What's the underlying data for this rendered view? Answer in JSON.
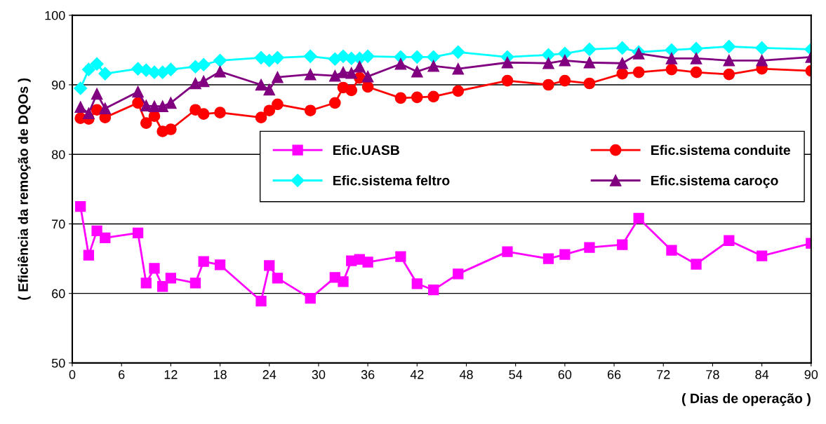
{
  "chart_data": {
    "type": "line",
    "xlabel": "( Dias de operação )",
    "ylabel": "( Eficiência da remoção de DQOs )",
    "x": [
      1,
      2,
      3,
      4,
      8,
      9,
      10,
      11,
      12,
      15,
      16,
      18,
      23,
      24,
      25,
      29,
      32,
      33,
      34,
      35,
      36,
      40,
      42,
      44,
      47,
      53,
      58,
      60,
      63,
      67,
      69,
      73,
      76,
      80,
      84,
      90
    ],
    "xlim": [
      0,
      90
    ],
    "xticks": [
      0,
      6,
      12,
      18,
      24,
      30,
      36,
      42,
      48,
      54,
      60,
      66,
      72,
      78,
      84,
      90
    ],
    "ylim": [
      50,
      100
    ],
    "yticks": [
      50,
      60,
      70,
      80,
      90,
      100
    ],
    "grid": "y",
    "legend": "center",
    "line_style": "solid",
    "series": [
      {
        "name": "Efic.UASB",
        "color": "#ff00ff",
        "marker": "square",
        "values": [
          72.5,
          65.5,
          69,
          68,
          68.7,
          61.5,
          63.6,
          61,
          62.2,
          61.5,
          64.6,
          64.1,
          58.9,
          64,
          62.2,
          59.3,
          62.3,
          61.7,
          64.7,
          64.9,
          64.5,
          65.3,
          61.4,
          60.5,
          62.8,
          66,
          65,
          65.6,
          66.6,
          67,
          70.8,
          66.2,
          64.2,
          67.6,
          65.4,
          67.2
        ]
      },
      {
        "name": "Efic.sistema conduite",
        "color": "#ff0000",
        "marker": "circle",
        "values": [
          85.2,
          85.1,
          86.4,
          85.3,
          87.4,
          84.5,
          85.5,
          83.3,
          83.6,
          86.4,
          85.8,
          86,
          85.3,
          86.3,
          87.2,
          86.3,
          87.4,
          89.6,
          89.2,
          91,
          89.7,
          88.1,
          88.2,
          88.3,
          89.1,
          90.6,
          90,
          90.6,
          90.2,
          91.6,
          91.8,
          92.2,
          91.8,
          91.5,
          92.3,
          92
        ]
      },
      {
        "name": "Efic.sistema feltro",
        "color": "#00ffff",
        "marker": "diamond",
        "values": [
          89.5,
          92.2,
          93,
          91.6,
          92.3,
          92.1,
          91.8,
          91.8,
          92.2,
          92.6,
          92.9,
          93.5,
          93.9,
          93.5,
          93.9,
          94.1,
          93.7,
          94.1,
          93.8,
          93.8,
          94.1,
          94,
          94,
          94,
          94.7,
          94,
          94.3,
          94.5,
          95.1,
          95.3,
          94.7,
          95,
          95.2,
          95.5,
          95.3,
          95.1
        ]
      },
      {
        "name": "Efic.sistema caroço",
        "color": "#800080",
        "marker": "triangle",
        "values": [
          86.8,
          85.9,
          88.7,
          86.6,
          89,
          87,
          86.9,
          86.9,
          87.4,
          90.2,
          90.5,
          91.9,
          90,
          89.3,
          91.1,
          91.5,
          91.3,
          91.8,
          91.7,
          92.6,
          91.2,
          93,
          91.9,
          92.7,
          92.3,
          93.2,
          93.1,
          93.5,
          93.2,
          93.1,
          94.5,
          93.8,
          93.8,
          93.5,
          93.5,
          94
        ]
      }
    ]
  }
}
